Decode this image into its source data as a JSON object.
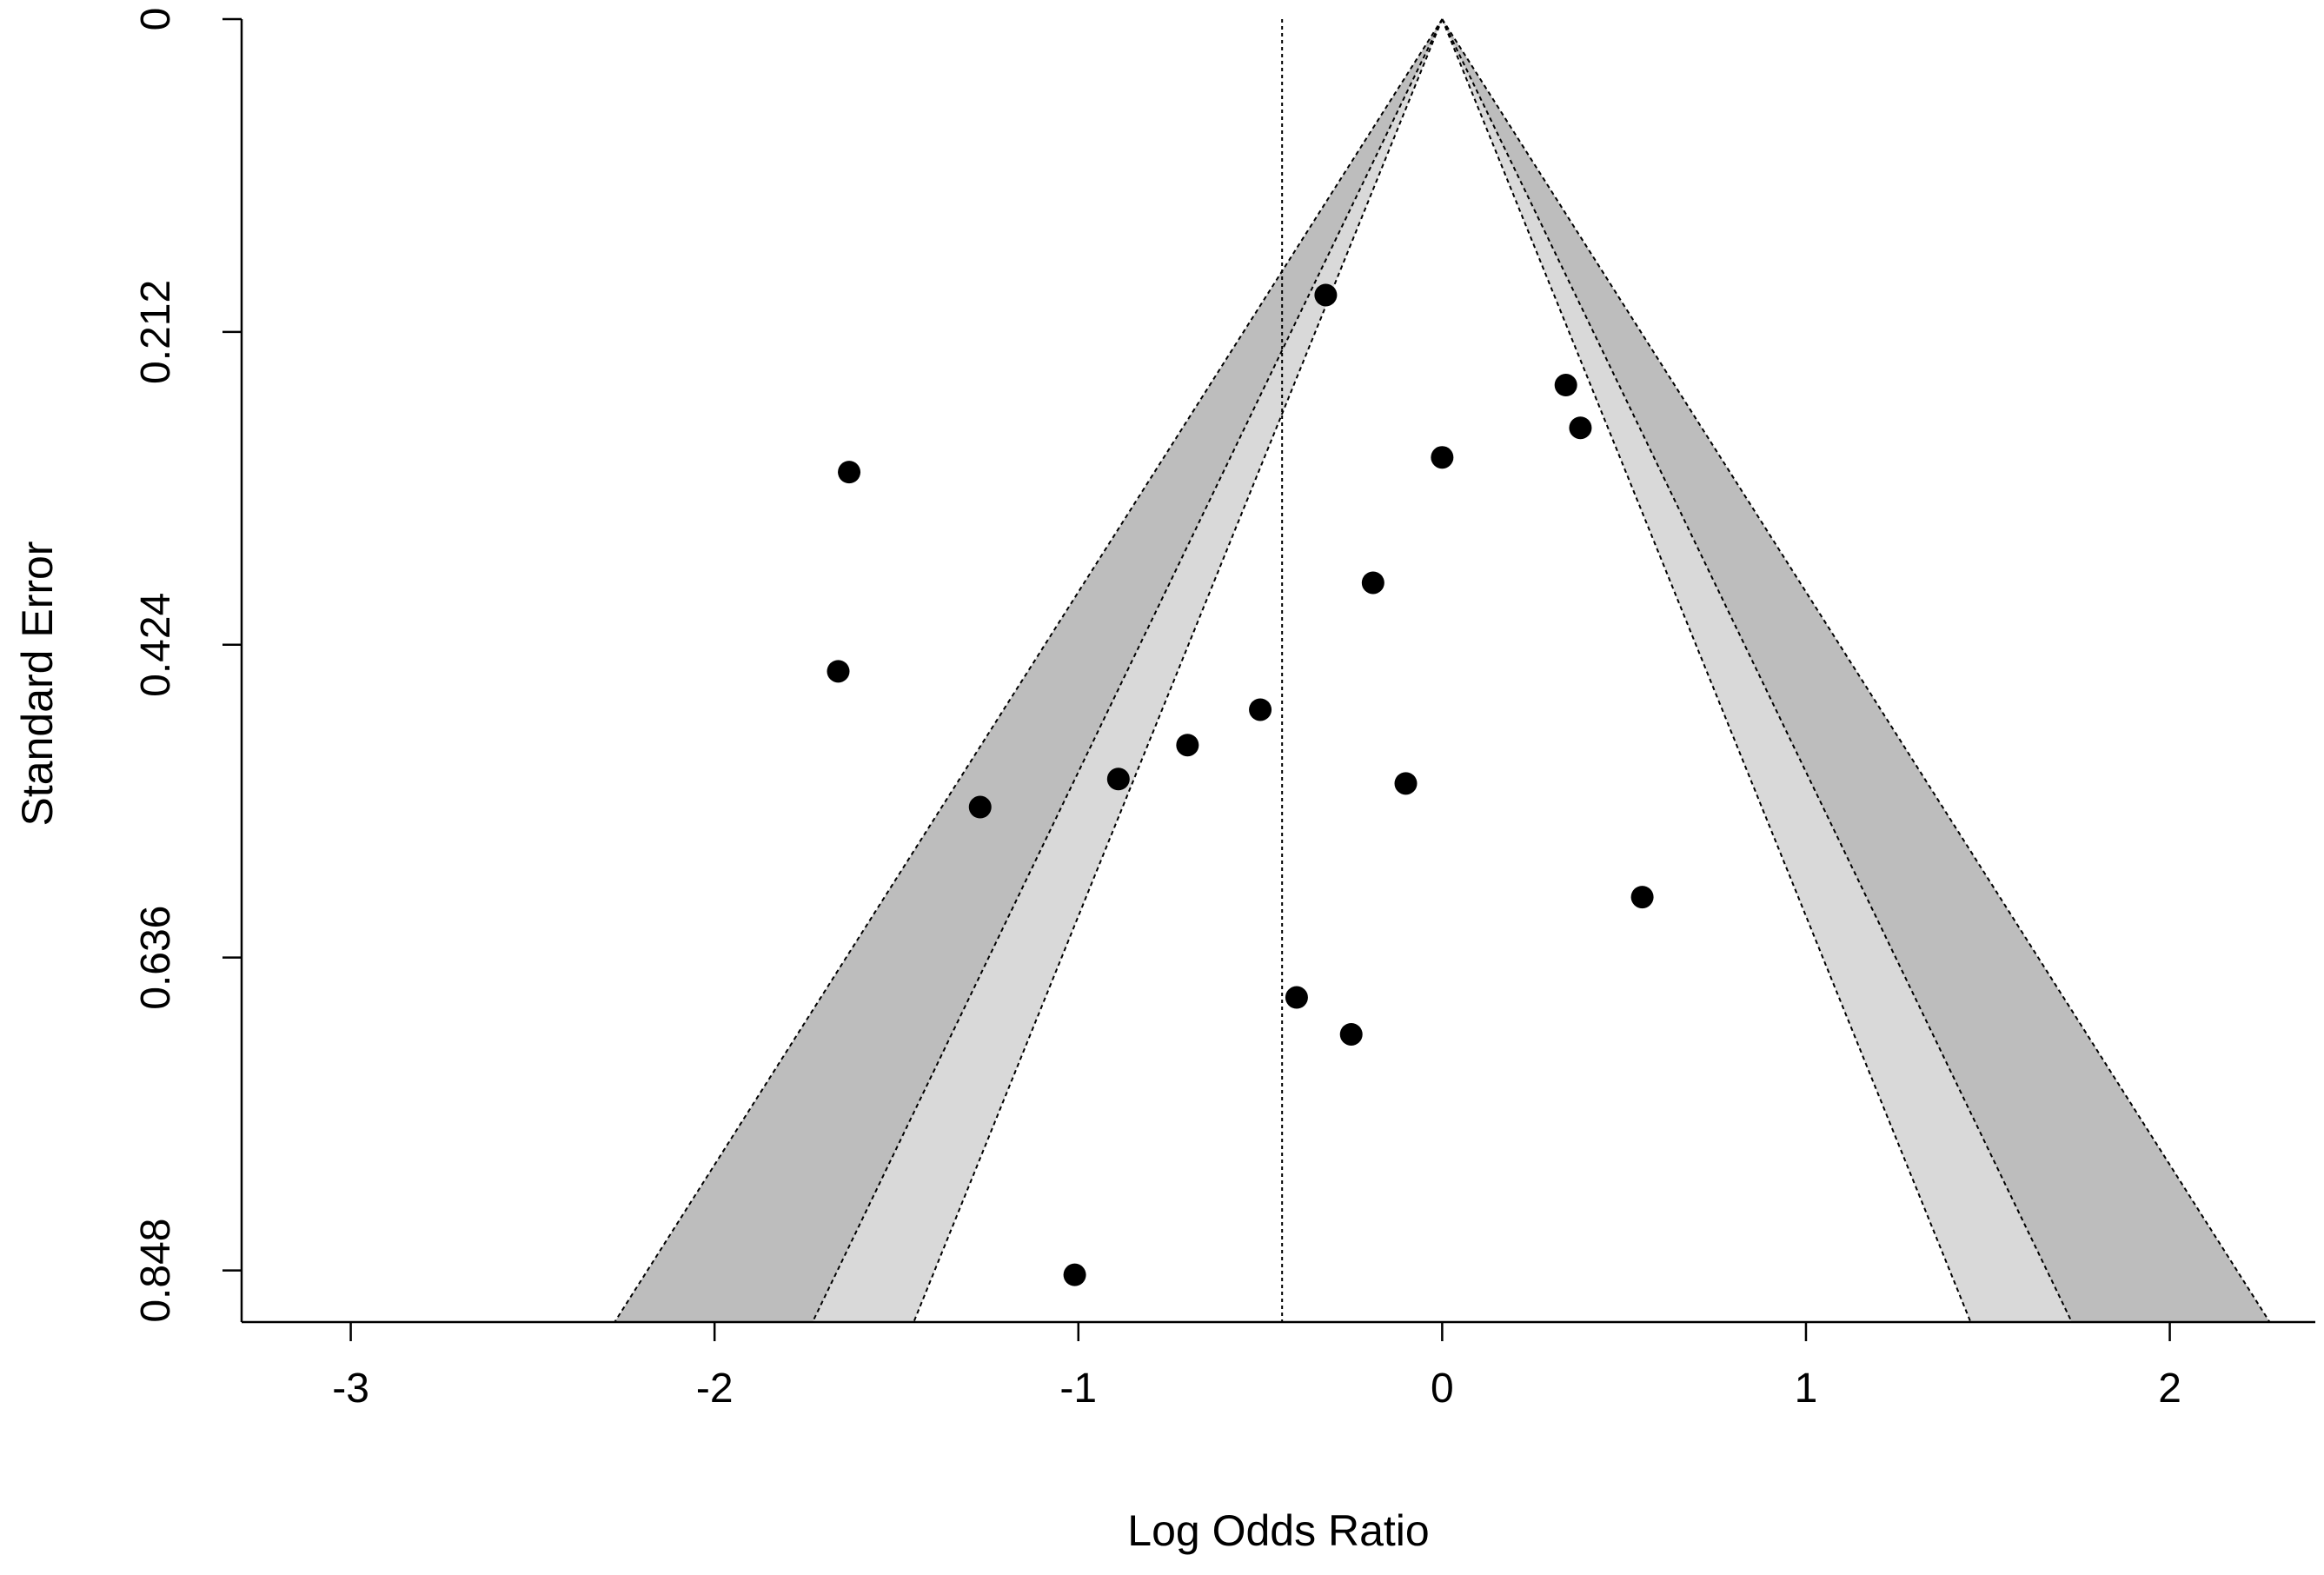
{
  "chart_data": {
    "type": "scatter",
    "subtype": "contour-enhanced funnel plot",
    "xlabel": "Log Odds Ratio",
    "ylabel": "Standard Error",
    "xlim": [
      -3.3,
      2.4
    ],
    "ylim": [
      0,
      0.883
    ],
    "y_reversed": true,
    "x_ticks": [
      -3,
      -2,
      -1,
      0,
      1,
      2
    ],
    "x_tick_labels": [
      "-3",
      "-2",
      "-1",
      "0",
      "1",
      "2"
    ],
    "y_ticks": [
      0,
      0.212,
      0.424,
      0.636,
      0.848
    ],
    "y_tick_labels": [
      "0",
      "0.212",
      "0.424",
      "0.636",
      "0.848"
    ],
    "reference_line": {
      "x": -0.44,
      "style": "dotted"
    },
    "contours": {
      "center": 0,
      "levels": [
        {
          "z": 1.645,
          "fill": "#ffffff"
        },
        {
          "z": 1.96,
          "fill": "#d9d9d9"
        },
        {
          "z": 2.576,
          "fill": "#bdbdbd"
        }
      ],
      "outside_fill": "#ffffff"
    },
    "points": [
      {
        "x": -0.32,
        "y": 0.187
      },
      {
        "x": 0.34,
        "y": 0.248
      },
      {
        "x": 0.38,
        "y": 0.277
      },
      {
        "x": 0.0,
        "y": 0.297
      },
      {
        "x": -1.63,
        "y": 0.307
      },
      {
        "x": -0.19,
        "y": 0.382
      },
      {
        "x": -1.66,
        "y": 0.442
      },
      {
        "x": -0.5,
        "y": 0.468
      },
      {
        "x": -0.7,
        "y": 0.492
      },
      {
        "x": -0.89,
        "y": 0.515
      },
      {
        "x": -0.1,
        "y": 0.518
      },
      {
        "x": -1.27,
        "y": 0.534
      },
      {
        "x": 0.55,
        "y": 0.595
      },
      {
        "x": -0.4,
        "y": 0.663
      },
      {
        "x": -0.25,
        "y": 0.688
      },
      {
        "x": -1.01,
        "y": 0.851
      }
    ]
  }
}
